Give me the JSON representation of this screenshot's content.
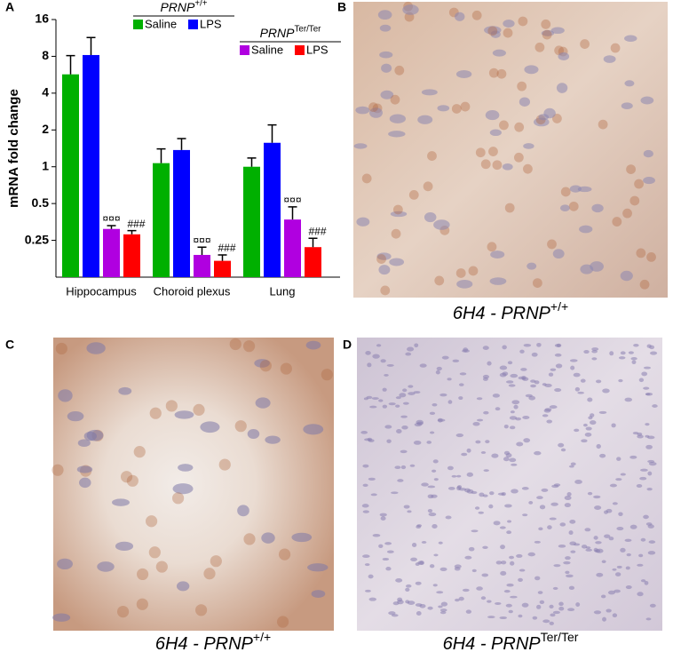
{
  "panels": [
    "A",
    "B",
    "C",
    "D"
  ],
  "chart_data": {
    "type": "bar",
    "ylabel": "mRNA fold change",
    "log_scale": 2,
    "categories": [
      "Hippocampus",
      "Choroid plexus",
      "Lung"
    ],
    "ylim": [
      0.125,
      16
    ],
    "yticks": [
      0.25,
      0.5,
      1,
      2,
      4,
      8,
      16
    ],
    "legend_groups": [
      {
        "gene": "PRNP",
        "genotype": "+/+",
        "series": [
          "Saline",
          "LPS"
        ]
      },
      {
        "gene": "PRNP",
        "genotype": "Ter/Ter",
        "series": [
          "Saline",
          "LPS"
        ]
      }
    ],
    "series": [
      {
        "name": "Saline",
        "color": "#00b000",
        "values": [
          5.7,
          1.07,
          1.0
        ],
        "errors": [
          2.4,
          0.33,
          0.18
        ]
      },
      {
        "name": "LPS",
        "color": "#0000ff",
        "values": [
          8.2,
          1.37,
          1.57
        ],
        "errors": [
          3.2,
          0.33,
          0.63
        ]
      },
      {
        "name": "Saline",
        "color": "#b000e0",
        "values": [
          0.31,
          0.19,
          0.37
        ],
        "errors": [
          0.02,
          0.03,
          0.1
        ],
        "significance": [
          "¤¤¤",
          "¤¤¤",
          "¤¤¤"
        ]
      },
      {
        "name": "LPS",
        "color": "#ff0000",
        "values": [
          0.28,
          0.17,
          0.22
        ],
        "errors": [
          0.02,
          0.02,
          0.04
        ],
        "significance": [
          "###",
          "###",
          "###"
        ]
      }
    ]
  },
  "captions": [
    {
      "antibody": "6H4 - PRNP",
      "genotype": "+/+"
    },
    {
      "antibody": "6H4 - PRNP",
      "genotype": "+/+"
    },
    {
      "antibody": "6H4 - PRNP",
      "genotype": "Ter/Ter"
    }
  ]
}
